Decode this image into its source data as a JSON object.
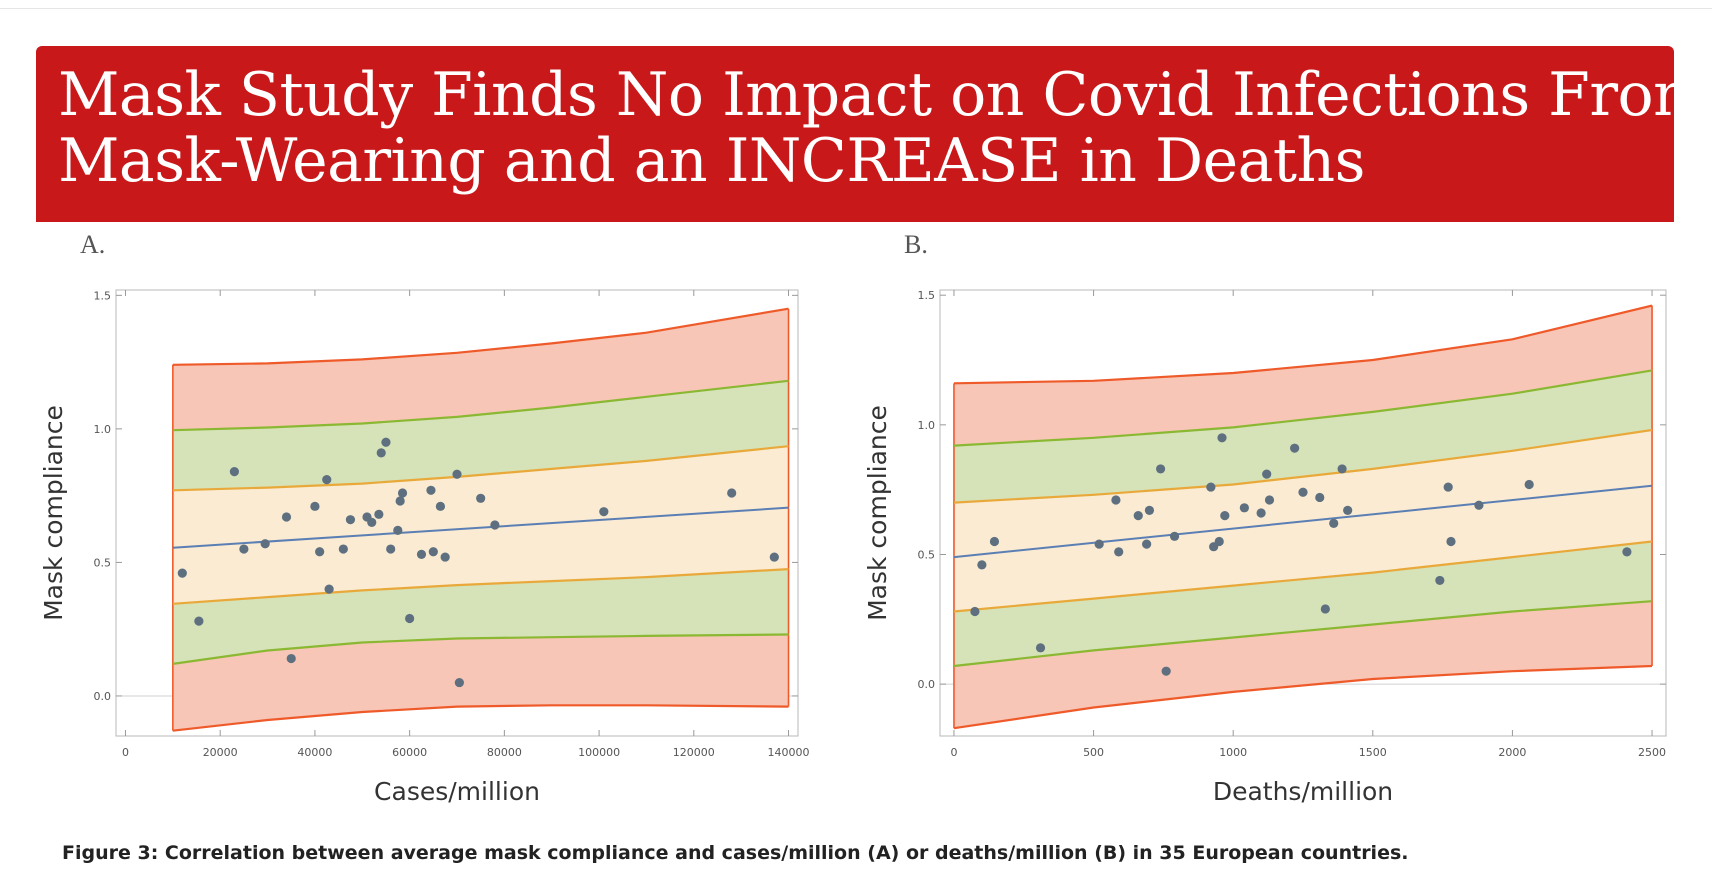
{
  "banner": {
    "line1": "Mask Study Finds No Impact on Covid Infections From",
    "line2": "Mask-Wearing and an INCREASE in Deaths"
  },
  "caption": "Figure 3: Correlation between average mask compliance and cases/million (A) or deaths/million (B) in 35 European countries.",
  "colors": {
    "banner": "#c8181a",
    "band_outer": "#f7c6b6",
    "band_mid": "#d6e3b8",
    "band_inner": "#faebd2",
    "line_outer": "#ef5a2a",
    "line_mid": "#8bb832",
    "line_inner": "#e9a93a",
    "fit": "#5b7fb4",
    "point": "#5e7080"
  },
  "chart_data": [
    {
      "type": "scatter",
      "panel_label": "A.",
      "xlabel": "Cases/million",
      "ylabel": "Mask compliance",
      "xlim": [
        -2000,
        142000
      ],
      "ylim": [
        -0.15,
        1.52
      ],
      "xticks": [
        0,
        20000,
        40000,
        60000,
        80000,
        100000,
        120000,
        140000
      ],
      "xtick_labels": [
        "0",
        "20000",
        "40000",
        "60000",
        "80000",
        "100000",
        "120000",
        "140000"
      ],
      "yticks": [
        0.0,
        0.5,
        1.0,
        1.5
      ],
      "ytick_labels": [
        "0.0",
        "0.5",
        "1.0",
        "1.5"
      ],
      "x_range": [
        10000,
        140000
      ],
      "fit": [
        0.555,
        0.705
      ],
      "bands": {
        "outer_upper": [
          [
            10000,
            1.24
          ],
          [
            30000,
            1.245
          ],
          [
            50000,
            1.26
          ],
          [
            70000,
            1.285
          ],
          [
            90000,
            1.32
          ],
          [
            110000,
            1.36
          ],
          [
            140000,
            1.45
          ]
        ],
        "mid_upper": [
          [
            10000,
            0.995
          ],
          [
            30000,
            1.005
          ],
          [
            50000,
            1.02
          ],
          [
            70000,
            1.045
          ],
          [
            90000,
            1.08
          ],
          [
            110000,
            1.12
          ],
          [
            140000,
            1.18
          ]
        ],
        "inner_upper": [
          [
            10000,
            0.77
          ],
          [
            30000,
            0.78
          ],
          [
            50000,
            0.795
          ],
          [
            70000,
            0.82
          ],
          [
            90000,
            0.85
          ],
          [
            110000,
            0.88
          ],
          [
            140000,
            0.935
          ]
        ],
        "inner_lower": [
          [
            10000,
            0.345
          ],
          [
            30000,
            0.37
          ],
          [
            50000,
            0.395
          ],
          [
            70000,
            0.415
          ],
          [
            90000,
            0.43
          ],
          [
            110000,
            0.445
          ],
          [
            140000,
            0.475
          ]
        ],
        "mid_lower": [
          [
            10000,
            0.12
          ],
          [
            30000,
            0.17
          ],
          [
            50000,
            0.2
          ],
          [
            70000,
            0.215
          ],
          [
            90000,
            0.22
          ],
          [
            110000,
            0.225
          ],
          [
            140000,
            0.23
          ]
        ],
        "outer_lower": [
          [
            10000,
            -0.13
          ],
          [
            30000,
            -0.09
          ],
          [
            50000,
            -0.06
          ],
          [
            70000,
            -0.04
          ],
          [
            90000,
            -0.035
          ],
          [
            110000,
            -0.035
          ],
          [
            140000,
            -0.04
          ]
        ]
      },
      "points": [
        [
          12000,
          0.46
        ],
        [
          15500,
          0.28
        ],
        [
          23000,
          0.84
        ],
        [
          25000,
          0.55
        ],
        [
          29500,
          0.57
        ],
        [
          34000,
          0.67
        ],
        [
          35000,
          0.14
        ],
        [
          40000,
          0.71
        ],
        [
          41000,
          0.54
        ],
        [
          42500,
          0.81
        ],
        [
          43000,
          0.4
        ],
        [
          46000,
          0.55
        ],
        [
          47500,
          0.66
        ],
        [
          51000,
          0.67
        ],
        [
          52000,
          0.65
        ],
        [
          53500,
          0.68
        ],
        [
          54000,
          0.91
        ],
        [
          55000,
          0.95
        ],
        [
          56000,
          0.55
        ],
        [
          57500,
          0.62
        ],
        [
          58000,
          0.73
        ],
        [
          58500,
          0.76
        ],
        [
          60000,
          0.29
        ],
        [
          62500,
          0.53
        ],
        [
          64500,
          0.77
        ],
        [
          65000,
          0.54
        ],
        [
          66500,
          0.71
        ],
        [
          67500,
          0.52
        ],
        [
          70000,
          0.83
        ],
        [
          70500,
          0.05
        ],
        [
          75000,
          0.74
        ],
        [
          78000,
          0.64
        ],
        [
          101000,
          0.69
        ],
        [
          128000,
          0.76
        ],
        [
          137000,
          0.52
        ]
      ]
    },
    {
      "type": "scatter",
      "panel_label": "B.",
      "xlabel": "Deaths/million",
      "ylabel": "Mask compliance",
      "xlim": [
        -50,
        2550
      ],
      "ylim": [
        -0.2,
        1.52
      ],
      "xticks": [
        0,
        500,
        1000,
        1500,
        2000,
        2500
      ],
      "xtick_labels": [
        "0",
        "500",
        "1000",
        "1500",
        "2000",
        "2500"
      ],
      "yticks": [
        0.0,
        0.5,
        1.0,
        1.5
      ],
      "ytick_labels": [
        "0.0",
        "0.5",
        "1.0",
        "1.5"
      ],
      "x_range": [
        0,
        2500
      ],
      "fit": [
        0.49,
        0.765
      ],
      "bands": {
        "outer_upper": [
          [
            0,
            1.16
          ],
          [
            500,
            1.17
          ],
          [
            1000,
            1.2
          ],
          [
            1500,
            1.25
          ],
          [
            2000,
            1.33
          ],
          [
            2500,
            1.46
          ]
        ],
        "mid_upper": [
          [
            0,
            0.92
          ],
          [
            500,
            0.95
          ],
          [
            1000,
            0.99
          ],
          [
            1500,
            1.05
          ],
          [
            2000,
            1.12
          ],
          [
            2500,
            1.21
          ]
        ],
        "inner_upper": [
          [
            0,
            0.7
          ],
          [
            500,
            0.73
          ],
          [
            1000,
            0.77
          ],
          [
            1500,
            0.83
          ],
          [
            2000,
            0.9
          ],
          [
            2500,
            0.98
          ]
        ],
        "inner_lower": [
          [
            0,
            0.28
          ],
          [
            500,
            0.33
          ],
          [
            1000,
            0.38
          ],
          [
            1500,
            0.43
          ],
          [
            2000,
            0.49
          ],
          [
            2500,
            0.55
          ]
        ],
        "mid_lower": [
          [
            0,
            0.07
          ],
          [
            500,
            0.13
          ],
          [
            1000,
            0.18
          ],
          [
            1500,
            0.23
          ],
          [
            2000,
            0.28
          ],
          [
            2500,
            0.32
          ]
        ],
        "outer_lower": [
          [
            0,
            -0.17
          ],
          [
            500,
            -0.09
          ],
          [
            1000,
            -0.03
          ],
          [
            1500,
            0.02
          ],
          [
            2000,
            0.05
          ],
          [
            2500,
            0.07
          ]
        ]
      },
      "points": [
        [
          75,
          0.28
        ],
        [
          100,
          0.46
        ],
        [
          145,
          0.55
        ],
        [
          310,
          0.14
        ],
        [
          520,
          0.54
        ],
        [
          580,
          0.71
        ],
        [
          590,
          0.51
        ],
        [
          660,
          0.65
        ],
        [
          690,
          0.54
        ],
        [
          700,
          0.67
        ],
        [
          740,
          0.83
        ],
        [
          760,
          0.05
        ],
        [
          790,
          0.57
        ],
        [
          920,
          0.76
        ],
        [
          930,
          0.53
        ],
        [
          950,
          0.55
        ],
        [
          960,
          0.95
        ],
        [
          970,
          0.65
        ],
        [
          1040,
          0.68
        ],
        [
          1100,
          0.66
        ],
        [
          1120,
          0.81
        ],
        [
          1130,
          0.71
        ],
        [
          1220,
          0.91
        ],
        [
          1250,
          0.74
        ],
        [
          1310,
          0.72
        ],
        [
          1330,
          0.29
        ],
        [
          1360,
          0.62
        ],
        [
          1390,
          0.83
        ],
        [
          1410,
          0.67
        ],
        [
          1740,
          0.4
        ],
        [
          1770,
          0.76
        ],
        [
          1780,
          0.55
        ],
        [
          1880,
          0.69
        ],
        [
          2060,
          0.77
        ],
        [
          2410,
          0.51
        ]
      ]
    }
  ]
}
